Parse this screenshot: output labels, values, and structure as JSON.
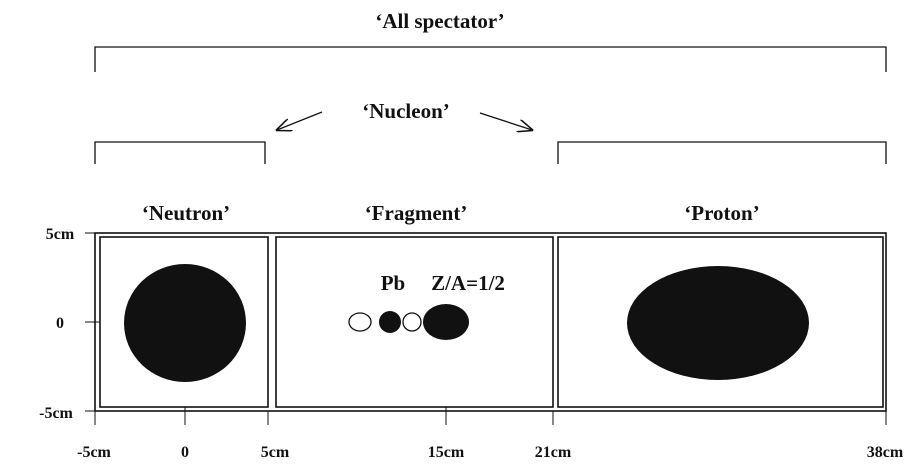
{
  "title": "‘All spectator’",
  "nucleon_label": "‘Nucleon’",
  "regions": [
    {
      "label": "‘Neutron’"
    },
    {
      "label": "‘Fragment’"
    },
    {
      "label": "‘Proton’"
    }
  ],
  "fragment_note": {
    "element": "Pb",
    "ratio": "Z/A=1/2"
  },
  "y_axis": {
    "labels": [
      "5cm",
      "0",
      "-5cm"
    ]
  },
  "x_axis": {
    "labels": [
      "-5cm",
      "0",
      "5cm",
      "15cm",
      "21cm",
      "38cm"
    ]
  }
}
